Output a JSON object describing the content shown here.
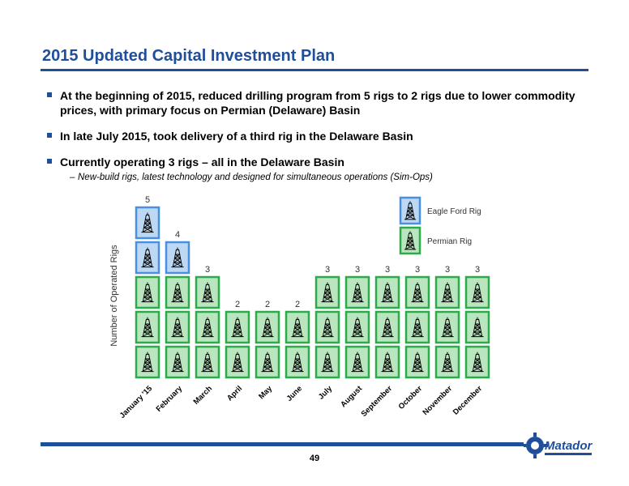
{
  "slide": {
    "title": "2015 Updated Capital Investment Plan",
    "bullets": [
      "At the beginning of 2015, reduced drilling program from 5 rigs to 2 rigs due to lower commodity prices, with primary focus on Permian (Delaware) Basin",
      "In late July 2015, took delivery of a third rig in the Delaware Basin",
      "Currently operating 3 rigs – all in the Delaware Basin"
    ],
    "sub_bullet": "New-build rigs, latest technology and designed for simultaneous operations (Sim-Ops)",
    "sub_bullet_dash": "–",
    "page_number": "49",
    "logo_text": "Matador"
  },
  "colors": {
    "brand_blue": "#1f4e9a",
    "permian_green": "#2bab4a",
    "permian_fill": "#b9e5bf",
    "eagle_ford_blue": "#4a90e2",
    "eagle_ford_fill": "#bcd8f2"
  },
  "chart_data": {
    "type": "bar",
    "ylabel": "Number of Operated Rigs",
    "categories": [
      "January '15",
      "February",
      "March",
      "April",
      "May",
      "June",
      "July",
      "August",
      "September",
      "October",
      "November",
      "December"
    ],
    "series": [
      {
        "name": "Permian Rig",
        "values": [
          3,
          3,
          3,
          2,
          2,
          2,
          3,
          3,
          3,
          3,
          3,
          3
        ]
      },
      {
        "name": "Eagle Ford Rig",
        "values": [
          2,
          1,
          0,
          0,
          0,
          0,
          0,
          0,
          0,
          0,
          0,
          0
        ]
      }
    ],
    "totals": [
      5,
      4,
      3,
      2,
      2,
      2,
      3,
      3,
      3,
      3,
      3,
      3
    ],
    "legend": [
      "Eagle Ford Rig",
      "Permian Rig"
    ],
    "legend_position": "top-right",
    "icon": "oil-rig-icon"
  }
}
